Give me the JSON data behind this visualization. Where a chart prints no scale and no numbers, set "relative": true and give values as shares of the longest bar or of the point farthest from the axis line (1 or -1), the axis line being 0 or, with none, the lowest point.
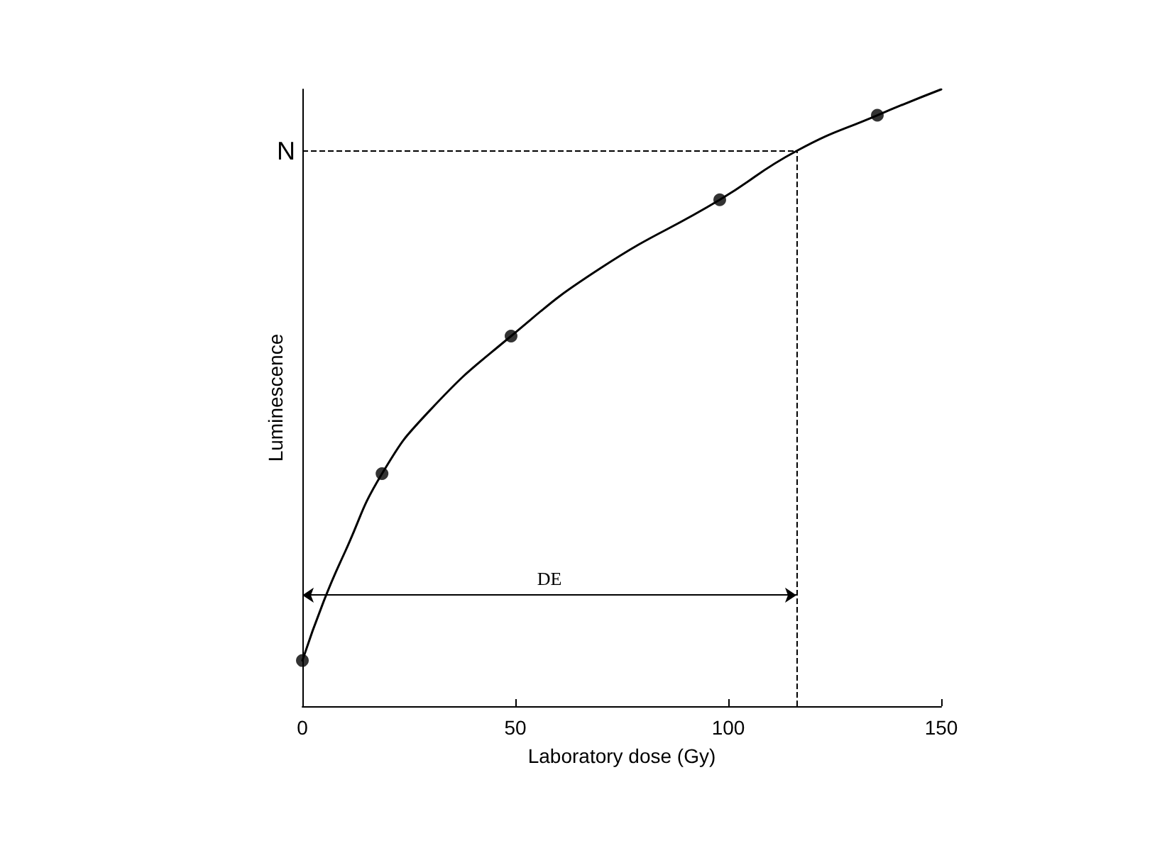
{
  "chart_data": {
    "type": "scatter",
    "relative": true,
    "xlabel": "Laboratory dose (Gy)",
    "ylabel": "Luminescence",
    "xlim": [
      0,
      150
    ],
    "xticks": [
      0,
      50,
      100,
      150
    ],
    "grid": false,
    "marker": "circle",
    "series": [
      {
        "color": "#000000",
        "x": [
          0,
          18.7,
          49,
          98,
          135
        ],
        "values": [
          0.074,
          0.377,
          0.6,
          0.821,
          0.958
        ]
      },
      {
        "type": "line",
        "color": "#000000",
        "marker": "none",
        "x": [
          0,
          5,
          10,
          18.7,
          30,
          49,
          70,
          98,
          116,
          135,
          150
        ],
        "values": [
          0.074,
          0.17,
          0.25,
          0.377,
          0.48,
          0.6,
          0.71,
          0.821,
          0.9,
          0.958,
          1.0
        ]
      }
    ],
    "ref_lines": [
      {
        "axis": "y",
        "value": 0.9,
        "label": "N",
        "line_style": "dashed",
        "color": "#000000"
      },
      {
        "axis": "x",
        "value": 116,
        "line_style": "dashed",
        "color": "#000000"
      }
    ],
    "annotations": [
      "DE"
    ]
  }
}
